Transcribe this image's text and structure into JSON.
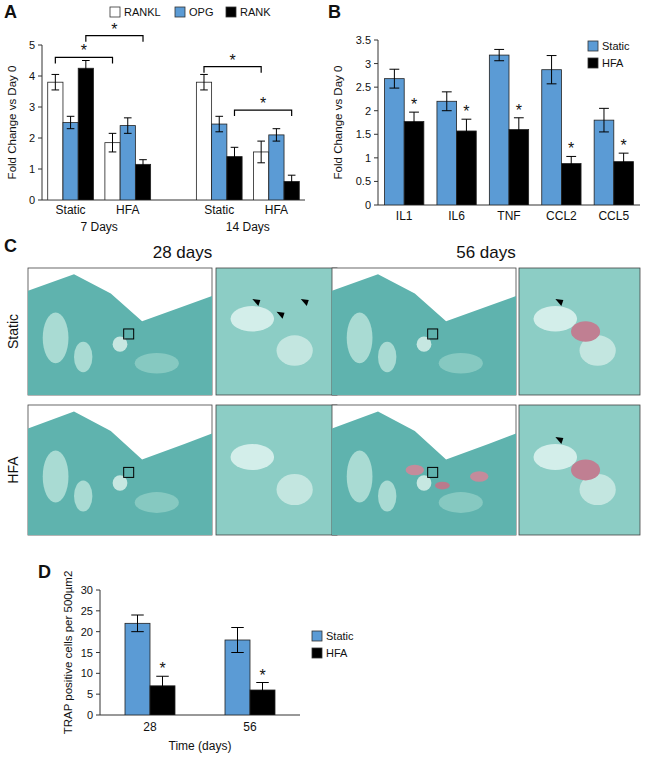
{
  "chart_data": [
    {
      "label": "A",
      "type": "bar",
      "y_label": "Fold Change vs Day 0",
      "categories": [
        "Static",
        "HFA",
        "Static",
        "HFA"
      ],
      "category_groups": [
        "7 Days",
        "7 Days",
        "14 Days",
        "14 Days"
      ],
      "ylim": [
        0,
        5
      ],
      "yticks": [
        0,
        1,
        2,
        3,
        4,
        5
      ],
      "legend": "top",
      "series": [
        {
          "name": "RANKL",
          "color": "#ffffff",
          "values": [
            3.8,
            1.85,
            3.8,
            1.55
          ],
          "errors": [
            0.25,
            0.3,
            0.25,
            0.35
          ]
        },
        {
          "name": "OPG",
          "color": "#5b9bd5",
          "values": [
            2.5,
            2.4,
            2.45,
            2.1
          ],
          "errors": [
            0.2,
            0.25,
            0.25,
            0.2
          ]
        },
        {
          "name": "RANK",
          "color": "#000000",
          "values": [
            4.25,
            1.15,
            1.4,
            0.6
          ],
          "errors": [
            0.25,
            0.15,
            0.3,
            0.2
          ]
        }
      ],
      "significance": [
        {
          "series": 0,
          "from": 0,
          "to": 1,
          "y": 4.6,
          "label": "*"
        },
        {
          "series": 2,
          "from": 0,
          "to": 1,
          "y": 5.3,
          "label": "*"
        },
        {
          "series": 0,
          "from": 2,
          "to": 3,
          "y": 4.3,
          "label": "*"
        },
        {
          "series": 2,
          "from": 2,
          "to": 3,
          "y": 2.9,
          "label": "*"
        }
      ]
    },
    {
      "label": "B",
      "type": "bar",
      "y_label": "Fold Change vs Day 0",
      "categories": [
        "IL1",
        "IL6",
        "TNF",
        "CCL2",
        "CCL5"
      ],
      "ylim": [
        0,
        3.5
      ],
      "yticks": [
        0,
        0.5,
        1,
        1.5,
        2,
        2.5,
        3,
        3.5
      ],
      "legend": "top-right",
      "series": [
        {
          "name": "Static",
          "color": "#5b9bd5",
          "values": [
            2.68,
            2.2,
            3.18,
            2.87,
            1.8
          ],
          "errors": [
            0.2,
            0.2,
            0.12,
            0.3,
            0.25
          ]
        },
        {
          "name": "HFA",
          "color": "#000000",
          "values": [
            1.77,
            1.57,
            1.6,
            0.88,
            0.92
          ],
          "errors": [
            0.2,
            0.25,
            0.25,
            0.15,
            0.18
          ],
          "annotations": [
            "*",
            "*",
            "*",
            "*",
            "*"
          ]
        }
      ]
    },
    {
      "label": "C",
      "type": "image",
      "columns": [
        "28 days",
        "56 days"
      ],
      "rows": [
        "Static",
        "HFA"
      ]
    },
    {
      "label": "D",
      "type": "bar",
      "y_label": "TRAP positive cells per 500µm2",
      "x_label": "Time (days)",
      "categories": [
        "28",
        "56"
      ],
      "ylim": [
        0,
        30
      ],
      "yticks": [
        0,
        5,
        10,
        15,
        20,
        25,
        30
      ],
      "legend": "right",
      "series": [
        {
          "name": "Static",
          "color": "#5b9bd5",
          "values": [
            22,
            18
          ],
          "errors": [
            2,
            3
          ]
        },
        {
          "name": "HFA",
          "color": "#000000",
          "values": [
            7,
            6
          ],
          "errors": [
            2.3,
            1.8
          ],
          "annotations": [
            "*",
            "*"
          ]
        }
      ]
    }
  ]
}
